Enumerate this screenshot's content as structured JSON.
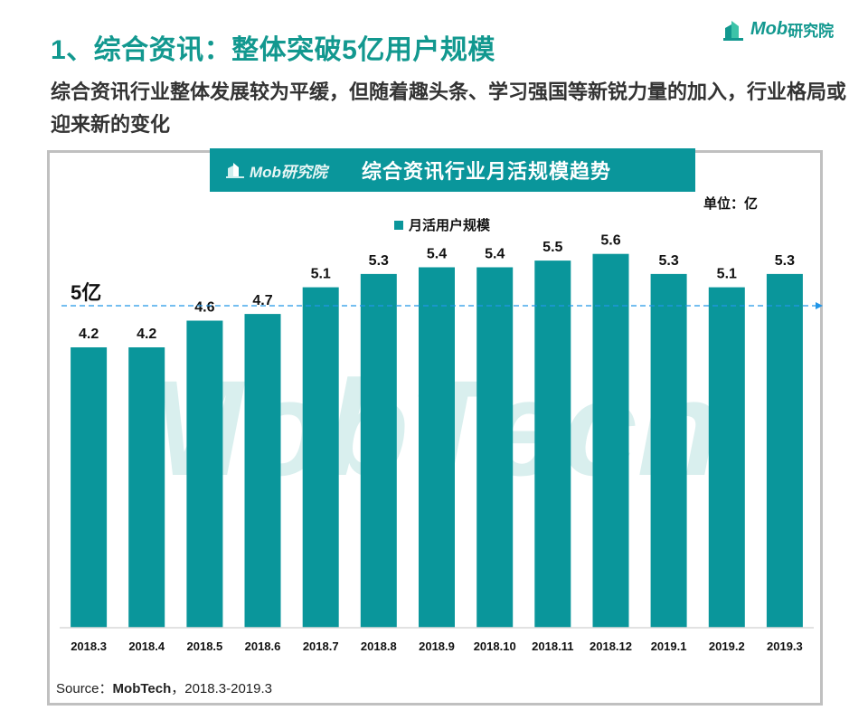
{
  "header": {
    "title": "1、综合资讯：整体突破5亿用户规模",
    "subtitle": "综合资讯行业整体发展较为平缓，但随着趣头条、学习强国等新锐力量的加入，行业格局或迎来新的变化",
    "logo_text": "Mob",
    "logo_cn": "研究院"
  },
  "banner": {
    "logo_text": "Mob研究院",
    "title": "综合资讯行业月活规模趋势"
  },
  "colors": {
    "brand": "#12988f",
    "bar": "#0a969b",
    "reference_line": "#2196e8",
    "watermark": "#d9efee"
  },
  "chart_data": {
    "type": "bar",
    "title": "综合资讯行业月活规模趋势",
    "unit_label": "单位：亿",
    "xlabel": "",
    "ylabel": "",
    "legend": {
      "entries": [
        "月活用户规模"
      ],
      "position": "top-center"
    },
    "categories": [
      "2018.3",
      "2018.4",
      "2018.5",
      "2018.6",
      "2018.7",
      "2018.8",
      "2018.9",
      "2018.10",
      "2018.11",
      "2018.12",
      "2019.1",
      "2019.2",
      "2019.3"
    ],
    "series": [
      {
        "name": "月活用户规模",
        "values": [
          4.2,
          4.2,
          4.6,
          4.7,
          5.1,
          5.3,
          5.4,
          5.4,
          5.5,
          5.6,
          5.3,
          5.1,
          5.3
        ]
      }
    ],
    "value_labels": [
      "4.2",
      "4.2",
      "4.6",
      "4.7",
      "5.1",
      "5.3",
      "5.4",
      "5.4",
      "5.5",
      "5.6",
      "5.3",
      "5.1",
      "5.3"
    ],
    "reference_line": {
      "value": 5,
      "label": "5亿",
      "style": "dashed-arrow"
    },
    "ylim": [
      0,
      6
    ],
    "grid": false,
    "watermark": "MobTech"
  },
  "source": {
    "prefix": "Source：",
    "name": "MobTech",
    "suffix": "，2018.3-2019.3"
  }
}
